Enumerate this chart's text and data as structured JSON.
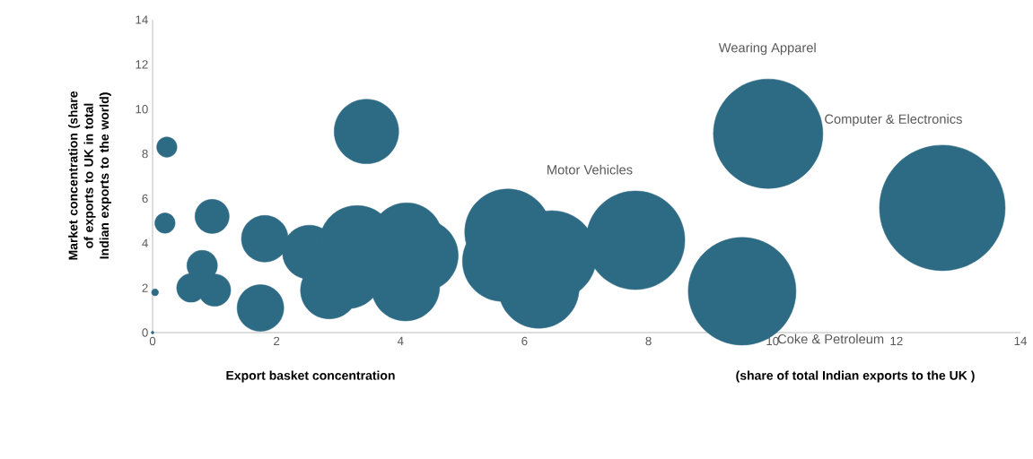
{
  "chart_data": {
    "type": "bubble",
    "xlabel": "Export basket concentration",
    "ylabel": "Market concentration (share of exports to UK in total Indian exports to the world)",
    "color": "#2d6a84",
    "x": [
      0.23,
      0.2,
      0.04,
      0,
      0.96,
      0.8,
      0.62,
      1.0,
      1.81,
      1.74,
      3.45,
      2.53,
      2.85,
      3.3,
      3.15,
      4.08,
      4.1,
      4.35,
      5.73,
      5.65,
      6.23,
      6.44,
      7.79,
      9.93,
      9.51,
      12.74
    ],
    "values": [
      8.3,
      4.9,
      1.8,
      0,
      5.2,
      3.0,
      2.0,
      1.9,
      4.2,
      1.1,
      9.0,
      3.6,
      1.9,
      4.0,
      2.6,
      2.05,
      4.2,
      3.45,
      4.5,
      3.2,
      2.0,
      3.45,
      4.13,
      8.9,
      1.85,
      5.58
    ],
    "sizes": [
      0.026,
      0.026,
      0.003,
      0.0005,
      0.074,
      0.059,
      0.052,
      0.066,
      0.138,
      0.138,
      0.264,
      0.184,
      0.209,
      0.36,
      0.295,
      0.295,
      0.327,
      0.327,
      0.47,
      0.413,
      0.413,
      0.51,
      0.617,
      0.759,
      0.735,
      1
    ],
    "xlim": [
      0,
      14
    ],
    "xticks": [
      0,
      2,
      4,
      6,
      8,
      10,
      12,
      14
    ],
    "ylim": [
      0,
      14
    ],
    "yticks": [
      0,
      2,
      4,
      6,
      8,
      10,
      12,
      14
    ],
    "annotations": [
      "Wearing Apparel",
      "Computer & Electronics",
      "Motor Vehicles",
      "Coke & Petroleum",
      "(share of total Indian exports to the UK )"
    ]
  }
}
